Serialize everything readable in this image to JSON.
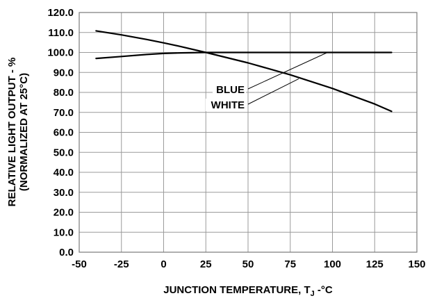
{
  "chart_data": {
    "type": "line",
    "xlabel": "JUNCTION TEMPERATURE, T",
    "xlabel_subscript": "J",
    "xlabel_suffix": " -°C",
    "ylabel_line1": "RELATIVE LIGHT OUTPUT - %",
    "ylabel_line2": "(NORMALIZED AT 25°C)",
    "xlim": [
      -50,
      150
    ],
    "ylim": [
      0,
      120
    ],
    "x_ticks": [
      -50,
      -25,
      0,
      25,
      50,
      75,
      100,
      125,
      150
    ],
    "x_tick_labels": [
      "-50",
      "-25",
      "0",
      "25",
      "50",
      "75",
      "100",
      "125",
      "150"
    ],
    "y_ticks": [
      0,
      10,
      20,
      30,
      40,
      50,
      60,
      70,
      80,
      90,
      100,
      110,
      120
    ],
    "y_tick_labels": [
      "0.0",
      "10.0",
      "20.0",
      "30.0",
      "40.0",
      "50.0",
      "60.0",
      "70.0",
      "80.0",
      "90.0",
      "100.0",
      "110.0",
      "120.0"
    ],
    "grid": true,
    "series": [
      {
        "name": "BLUE",
        "x": [
          -40,
          -25,
          -10,
          0,
          10,
          25,
          50,
          75,
          100,
          125,
          135
        ],
        "y": [
          97.0,
          98.0,
          99.0,
          99.5,
          99.8,
          100.0,
          100.0,
          100.0,
          100.0,
          100.0,
          100.0
        ]
      },
      {
        "name": "WHITE",
        "x": [
          -40,
          -25,
          -10,
          0,
          10,
          25,
          50,
          75,
          100,
          125,
          135
        ],
        "y": [
          110.8,
          108.8,
          106.5,
          104.8,
          103.0,
          100.0,
          94.8,
          88.8,
          82.0,
          74.2,
          70.5
        ]
      }
    ],
    "callouts": [
      {
        "label": "BLUE",
        "anchor": {
          "x": 97,
          "y": 100
        }
      },
      {
        "label": "WHITE",
        "anchor": {
          "x": 80,
          "y": 86.8
        }
      }
    ]
  }
}
